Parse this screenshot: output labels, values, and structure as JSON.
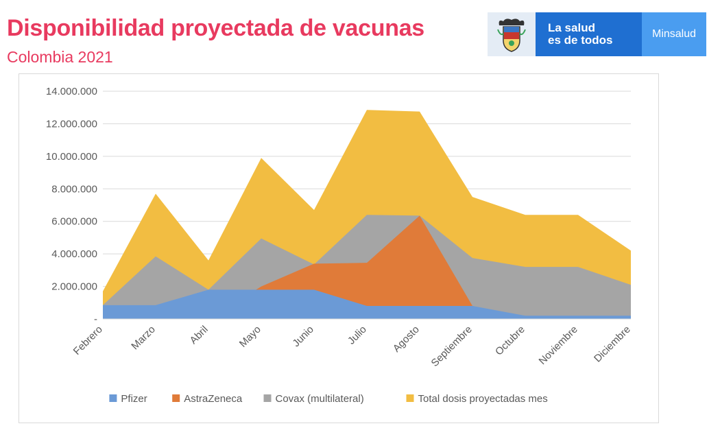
{
  "header": {
    "title": "Disponibilidad proyectada de vacunas",
    "subtitle": "Colombia  2021"
  },
  "brand": {
    "slogan_line1": "La salud",
    "slogan_line2": "es de todos",
    "ministry": "Minsalud",
    "slogan_color": "#1f6fd1",
    "ministry_color": "#4a9df0"
  },
  "chart_data": {
    "type": "area",
    "stacked": false,
    "categories": [
      "Febrero",
      "Marzo",
      "Abril",
      "Mayo",
      "Junio",
      "Julio",
      "Agosto",
      "Septiembre",
      "Octubre",
      "Noviembre",
      "Diciembre"
    ],
    "series": [
      {
        "name": "Total dosis proyectadas mes",
        "color": "#f2bd42",
        "values": [
          1700000,
          7700000,
          3600000,
          9900000,
          6700000,
          12850000,
          12750000,
          7500000,
          6400000,
          6400000,
          4200000
        ]
      },
      {
        "name": "Covax (multilateral)",
        "color": "#a5a5a5",
        "values": [
          850000,
          3850000,
          1800000,
          4950000,
          3350000,
          6400000,
          6350000,
          3750000,
          3200000,
          3200000,
          2100000
        ]
      },
      {
        "name": "AstraZeneca",
        "color": "#e07b39",
        "values": [
          0,
          0,
          0,
          2000000,
          3400000,
          3450000,
          6350000,
          800000,
          0,
          0,
          0
        ]
      },
      {
        "name": "Pfizer",
        "color": "#6b9ad6",
        "values": [
          850000,
          850000,
          1800000,
          1800000,
          1800000,
          800000,
          800000,
          800000,
          200000,
          200000,
          200000
        ]
      }
    ],
    "legend_order": [
      "Pfizer",
      "AstraZeneca",
      "Covax (multilateral)",
      "Total dosis proyectadas mes"
    ],
    "yticks": [
      "-",
      "2.000.000",
      "4.000.000",
      "6.000.000",
      "8.000.000",
      "10.000.000",
      "12.000.000",
      "14.000.000"
    ],
    "ylim": [
      0,
      14000000
    ],
    "grid": true,
    "legend_position": "bottom"
  }
}
